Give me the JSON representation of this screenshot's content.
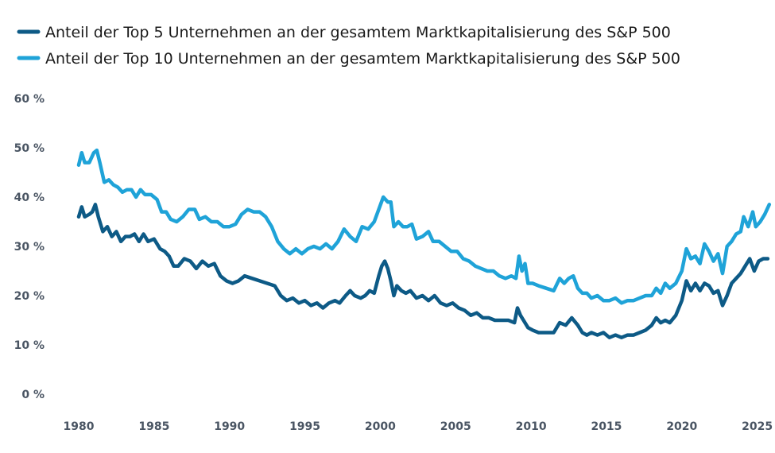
{
  "chart_data": {
    "type": "line",
    "title": "",
    "xlabel": "",
    "ylabel": "",
    "xlim": [
      1979.5,
      2026.2
    ],
    "ylim": [
      0,
      60
    ],
    "x_ticks": [
      1980,
      1985,
      1990,
      1995,
      2000,
      2005,
      2010,
      2015,
      2020,
      2025
    ],
    "x_tick_labels": [
      "1980",
      "1985",
      "1990",
      "1995",
      "2000",
      "2005",
      "2010",
      "2015",
      "2020",
      "2025"
    ],
    "y_ticks": [
      0,
      10,
      20,
      30,
      40,
      50,
      60
    ],
    "y_tick_labels": [
      "0 %",
      "10 %",
      "20 %",
      "30 %",
      "40 %",
      "50 %",
      "60 %"
    ],
    "grid": false,
    "legend_position": "top-left",
    "series": [
      {
        "name": "Anteil der Top 5 Unternehmen an der gesamtem Marktkapitalisierung des S&P 500",
        "color": "#0d5a86",
        "points": [
          [
            1980.0,
            36
          ],
          [
            1980.2,
            38
          ],
          [
            1980.4,
            36
          ],
          [
            1980.7,
            36.5
          ],
          [
            1980.9,
            37
          ],
          [
            1981.1,
            38.5
          ],
          [
            1981.3,
            36
          ],
          [
            1981.6,
            33
          ],
          [
            1981.9,
            34
          ],
          [
            1982.2,
            32
          ],
          [
            1982.5,
            33
          ],
          [
            1982.8,
            31
          ],
          [
            1983.1,
            32
          ],
          [
            1983.4,
            32
          ],
          [
            1983.7,
            32.5
          ],
          [
            1984.0,
            31
          ],
          [
            1984.3,
            32.5
          ],
          [
            1984.6,
            31
          ],
          [
            1985.0,
            31.5
          ],
          [
            1985.4,
            29.5
          ],
          [
            1985.7,
            29
          ],
          [
            1986.0,
            28
          ],
          [
            1986.3,
            26
          ],
          [
            1986.6,
            26
          ],
          [
            1987.0,
            27.5
          ],
          [
            1987.4,
            27
          ],
          [
            1987.8,
            25.5
          ],
          [
            1988.2,
            27
          ],
          [
            1988.6,
            26
          ],
          [
            1989.0,
            26.5
          ],
          [
            1989.4,
            24
          ],
          [
            1989.8,
            23
          ],
          [
            1990.2,
            22.5
          ],
          [
            1990.6,
            23
          ],
          [
            1991.0,
            24
          ],
          [
            1991.5,
            23.5
          ],
          [
            1992.0,
            23
          ],
          [
            1992.5,
            22.5
          ],
          [
            1993.0,
            22
          ],
          [
            1993.4,
            20
          ],
          [
            1993.8,
            19
          ],
          [
            1994.2,
            19.5
          ],
          [
            1994.6,
            18.5
          ],
          [
            1995.0,
            19
          ],
          [
            1995.4,
            18
          ],
          [
            1995.8,
            18.5
          ],
          [
            1996.2,
            17.5
          ],
          [
            1996.6,
            18.5
          ],
          [
            1997.0,
            19
          ],
          [
            1997.3,
            18.5
          ],
          [
            1997.7,
            20
          ],
          [
            1998.0,
            21
          ],
          [
            1998.3,
            20
          ],
          [
            1998.7,
            19.5
          ],
          [
            1999.0,
            20
          ],
          [
            1999.3,
            21
          ],
          [
            1999.6,
            20.5
          ],
          [
            1999.9,
            24
          ],
          [
            2000.1,
            26
          ],
          [
            2000.3,
            27
          ],
          [
            2000.5,
            25.5
          ],
          [
            2000.7,
            23
          ],
          [
            2000.9,
            20
          ],
          [
            2001.1,
            22
          ],
          [
            2001.4,
            21
          ],
          [
            2001.7,
            20.5
          ],
          [
            2002.0,
            21
          ],
          [
            2002.4,
            19.5
          ],
          [
            2002.8,
            20
          ],
          [
            2003.2,
            19
          ],
          [
            2003.6,
            20
          ],
          [
            2004.0,
            18.5
          ],
          [
            2004.4,
            18
          ],
          [
            2004.8,
            18.5
          ],
          [
            2005.2,
            17.5
          ],
          [
            2005.6,
            17
          ],
          [
            2006.0,
            16
          ],
          [
            2006.4,
            16.5
          ],
          [
            2006.8,
            15.5
          ],
          [
            2007.2,
            15.5
          ],
          [
            2007.6,
            15
          ],
          [
            2008.0,
            15
          ],
          [
            2008.5,
            15
          ],
          [
            2008.9,
            14.5
          ],
          [
            2009.1,
            17.5
          ],
          [
            2009.3,
            16
          ],
          [
            2009.5,
            15
          ],
          [
            2009.8,
            13.5
          ],
          [
            2010.1,
            13
          ],
          [
            2010.5,
            12.5
          ],
          [
            2011.0,
            12.5
          ],
          [
            2011.5,
            12.5
          ],
          [
            2011.9,
            14.5
          ],
          [
            2012.3,
            14
          ],
          [
            2012.7,
            15.5
          ],
          [
            2013.1,
            14
          ],
          [
            2013.4,
            12.5
          ],
          [
            2013.7,
            12
          ],
          [
            2014.0,
            12.5
          ],
          [
            2014.4,
            12
          ],
          [
            2014.8,
            12.5
          ],
          [
            2015.2,
            11.5
          ],
          [
            2015.6,
            12
          ],
          [
            2016.0,
            11.5
          ],
          [
            2016.4,
            12
          ],
          [
            2016.8,
            12
          ],
          [
            2017.2,
            12.5
          ],
          [
            2017.6,
            13
          ],
          [
            2018.0,
            14
          ],
          [
            2018.3,
            15.5
          ],
          [
            2018.6,
            14.5
          ],
          [
            2018.9,
            15
          ],
          [
            2019.2,
            14.5
          ],
          [
            2019.6,
            16
          ],
          [
            2020.0,
            19
          ],
          [
            2020.3,
            23
          ],
          [
            2020.6,
            21
          ],
          [
            2020.9,
            22.5
          ],
          [
            2021.2,
            21
          ],
          [
            2021.5,
            22.5
          ],
          [
            2021.8,
            22
          ],
          [
            2022.1,
            20.5
          ],
          [
            2022.4,
            21
          ],
          [
            2022.7,
            18
          ],
          [
            2023.0,
            20
          ],
          [
            2023.3,
            22.5
          ],
          [
            2023.6,
            23.5
          ],
          [
            2023.9,
            24.5
          ],
          [
            2024.2,
            26
          ],
          [
            2024.5,
            27.5
          ],
          [
            2024.8,
            25
          ],
          [
            2025.1,
            27
          ],
          [
            2025.4,
            27.5
          ],
          [
            2025.7,
            27.5
          ]
        ]
      },
      {
        "name": "Anteil der Top 10 Unternehmen an der gesamtem Marktkapitalisierung des S&P 500",
        "color": "#1fa3d8",
        "points": [
          [
            1980.0,
            46.5
          ],
          [
            1980.2,
            49
          ],
          [
            1980.4,
            47
          ],
          [
            1980.7,
            47
          ],
          [
            1981.0,
            49
          ],
          [
            1981.2,
            49.5
          ],
          [
            1981.4,
            47
          ],
          [
            1981.7,
            43
          ],
          [
            1982.0,
            43.5
          ],
          [
            1982.3,
            42.5
          ],
          [
            1982.6,
            42
          ],
          [
            1982.9,
            41
          ],
          [
            1983.2,
            41.5
          ],
          [
            1983.5,
            41.5
          ],
          [
            1983.8,
            40
          ],
          [
            1984.1,
            41.5
          ],
          [
            1984.4,
            40.5
          ],
          [
            1984.8,
            40.5
          ],
          [
            1985.2,
            39.5
          ],
          [
            1985.5,
            37
          ],
          [
            1985.8,
            37
          ],
          [
            1986.1,
            35.5
          ],
          [
            1986.5,
            35
          ],
          [
            1986.9,
            36
          ],
          [
            1987.3,
            37.5
          ],
          [
            1987.7,
            37.5
          ],
          [
            1988.0,
            35.5
          ],
          [
            1988.4,
            36
          ],
          [
            1988.8,
            35
          ],
          [
            1989.2,
            35
          ],
          [
            1989.6,
            34
          ],
          [
            1990.0,
            34
          ],
          [
            1990.4,
            34.5
          ],
          [
            1990.8,
            36.5
          ],
          [
            1991.2,
            37.5
          ],
          [
            1991.6,
            37
          ],
          [
            1992.0,
            37
          ],
          [
            1992.4,
            36
          ],
          [
            1992.8,
            34
          ],
          [
            1993.2,
            31
          ],
          [
            1993.6,
            29.5
          ],
          [
            1994.0,
            28.5
          ],
          [
            1994.4,
            29.5
          ],
          [
            1994.8,
            28.5
          ],
          [
            1995.2,
            29.5
          ],
          [
            1995.6,
            30
          ],
          [
            1996.0,
            29.5
          ],
          [
            1996.4,
            30.5
          ],
          [
            1996.8,
            29.5
          ],
          [
            1997.2,
            31
          ],
          [
            1997.6,
            33.5
          ],
          [
            1998.0,
            32
          ],
          [
            1998.4,
            31
          ],
          [
            1998.8,
            34
          ],
          [
            1999.2,
            33.5
          ],
          [
            1999.6,
            35
          ],
          [
            1999.9,
            37.5
          ],
          [
            2000.2,
            40
          ],
          [
            2000.5,
            39
          ],
          [
            2000.7,
            39
          ],
          [
            2000.9,
            34
          ],
          [
            2001.2,
            35
          ],
          [
            2001.5,
            34
          ],
          [
            2001.8,
            34
          ],
          [
            2002.1,
            34.5
          ],
          [
            2002.4,
            31.5
          ],
          [
            2002.8,
            32
          ],
          [
            2003.2,
            33
          ],
          [
            2003.5,
            31
          ],
          [
            2003.9,
            31
          ],
          [
            2004.3,
            30
          ],
          [
            2004.7,
            29
          ],
          [
            2005.1,
            29
          ],
          [
            2005.5,
            27.5
          ],
          [
            2005.9,
            27
          ],
          [
            2006.3,
            26
          ],
          [
            2006.7,
            25.5
          ],
          [
            2007.1,
            25
          ],
          [
            2007.5,
            25
          ],
          [
            2007.9,
            24
          ],
          [
            2008.3,
            23.5
          ],
          [
            2008.7,
            24
          ],
          [
            2009.0,
            23.5
          ],
          [
            2009.2,
            28
          ],
          [
            2009.4,
            25
          ],
          [
            2009.6,
            26.5
          ],
          [
            2009.8,
            22.5
          ],
          [
            2010.1,
            22.5
          ],
          [
            2010.5,
            22
          ],
          [
            2011.0,
            21.5
          ],
          [
            2011.5,
            21
          ],
          [
            2011.9,
            23.5
          ],
          [
            2012.2,
            22.5
          ],
          [
            2012.5,
            23.5
          ],
          [
            2012.8,
            24
          ],
          [
            2013.1,
            21.5
          ],
          [
            2013.4,
            20.5
          ],
          [
            2013.7,
            20.5
          ],
          [
            2014.0,
            19.5
          ],
          [
            2014.4,
            20
          ],
          [
            2014.8,
            19
          ],
          [
            2015.2,
            19
          ],
          [
            2015.6,
            19.5
          ],
          [
            2016.0,
            18.5
          ],
          [
            2016.4,
            19
          ],
          [
            2016.8,
            19
          ],
          [
            2017.2,
            19.5
          ],
          [
            2017.6,
            20
          ],
          [
            2018.0,
            20
          ],
          [
            2018.3,
            21.5
          ],
          [
            2018.6,
            20.5
          ],
          [
            2018.9,
            22.5
          ],
          [
            2019.2,
            21.5
          ],
          [
            2019.6,
            22.5
          ],
          [
            2020.0,
            25
          ],
          [
            2020.3,
            29.5
          ],
          [
            2020.6,
            27.5
          ],
          [
            2020.9,
            28
          ],
          [
            2021.2,
            26.5
          ],
          [
            2021.5,
            30.5
          ],
          [
            2021.8,
            29
          ],
          [
            2022.1,
            27
          ],
          [
            2022.4,
            28.5
          ],
          [
            2022.7,
            24.5
          ],
          [
            2023.0,
            30
          ],
          [
            2023.3,
            31
          ],
          [
            2023.6,
            32.5
          ],
          [
            2023.9,
            33
          ],
          [
            2024.1,
            36
          ],
          [
            2024.4,
            34
          ],
          [
            2024.7,
            37
          ],
          [
            2024.9,
            34
          ],
          [
            2025.2,
            35
          ],
          [
            2025.5,
            36.5
          ],
          [
            2025.8,
            38.5
          ]
        ]
      }
    ]
  }
}
